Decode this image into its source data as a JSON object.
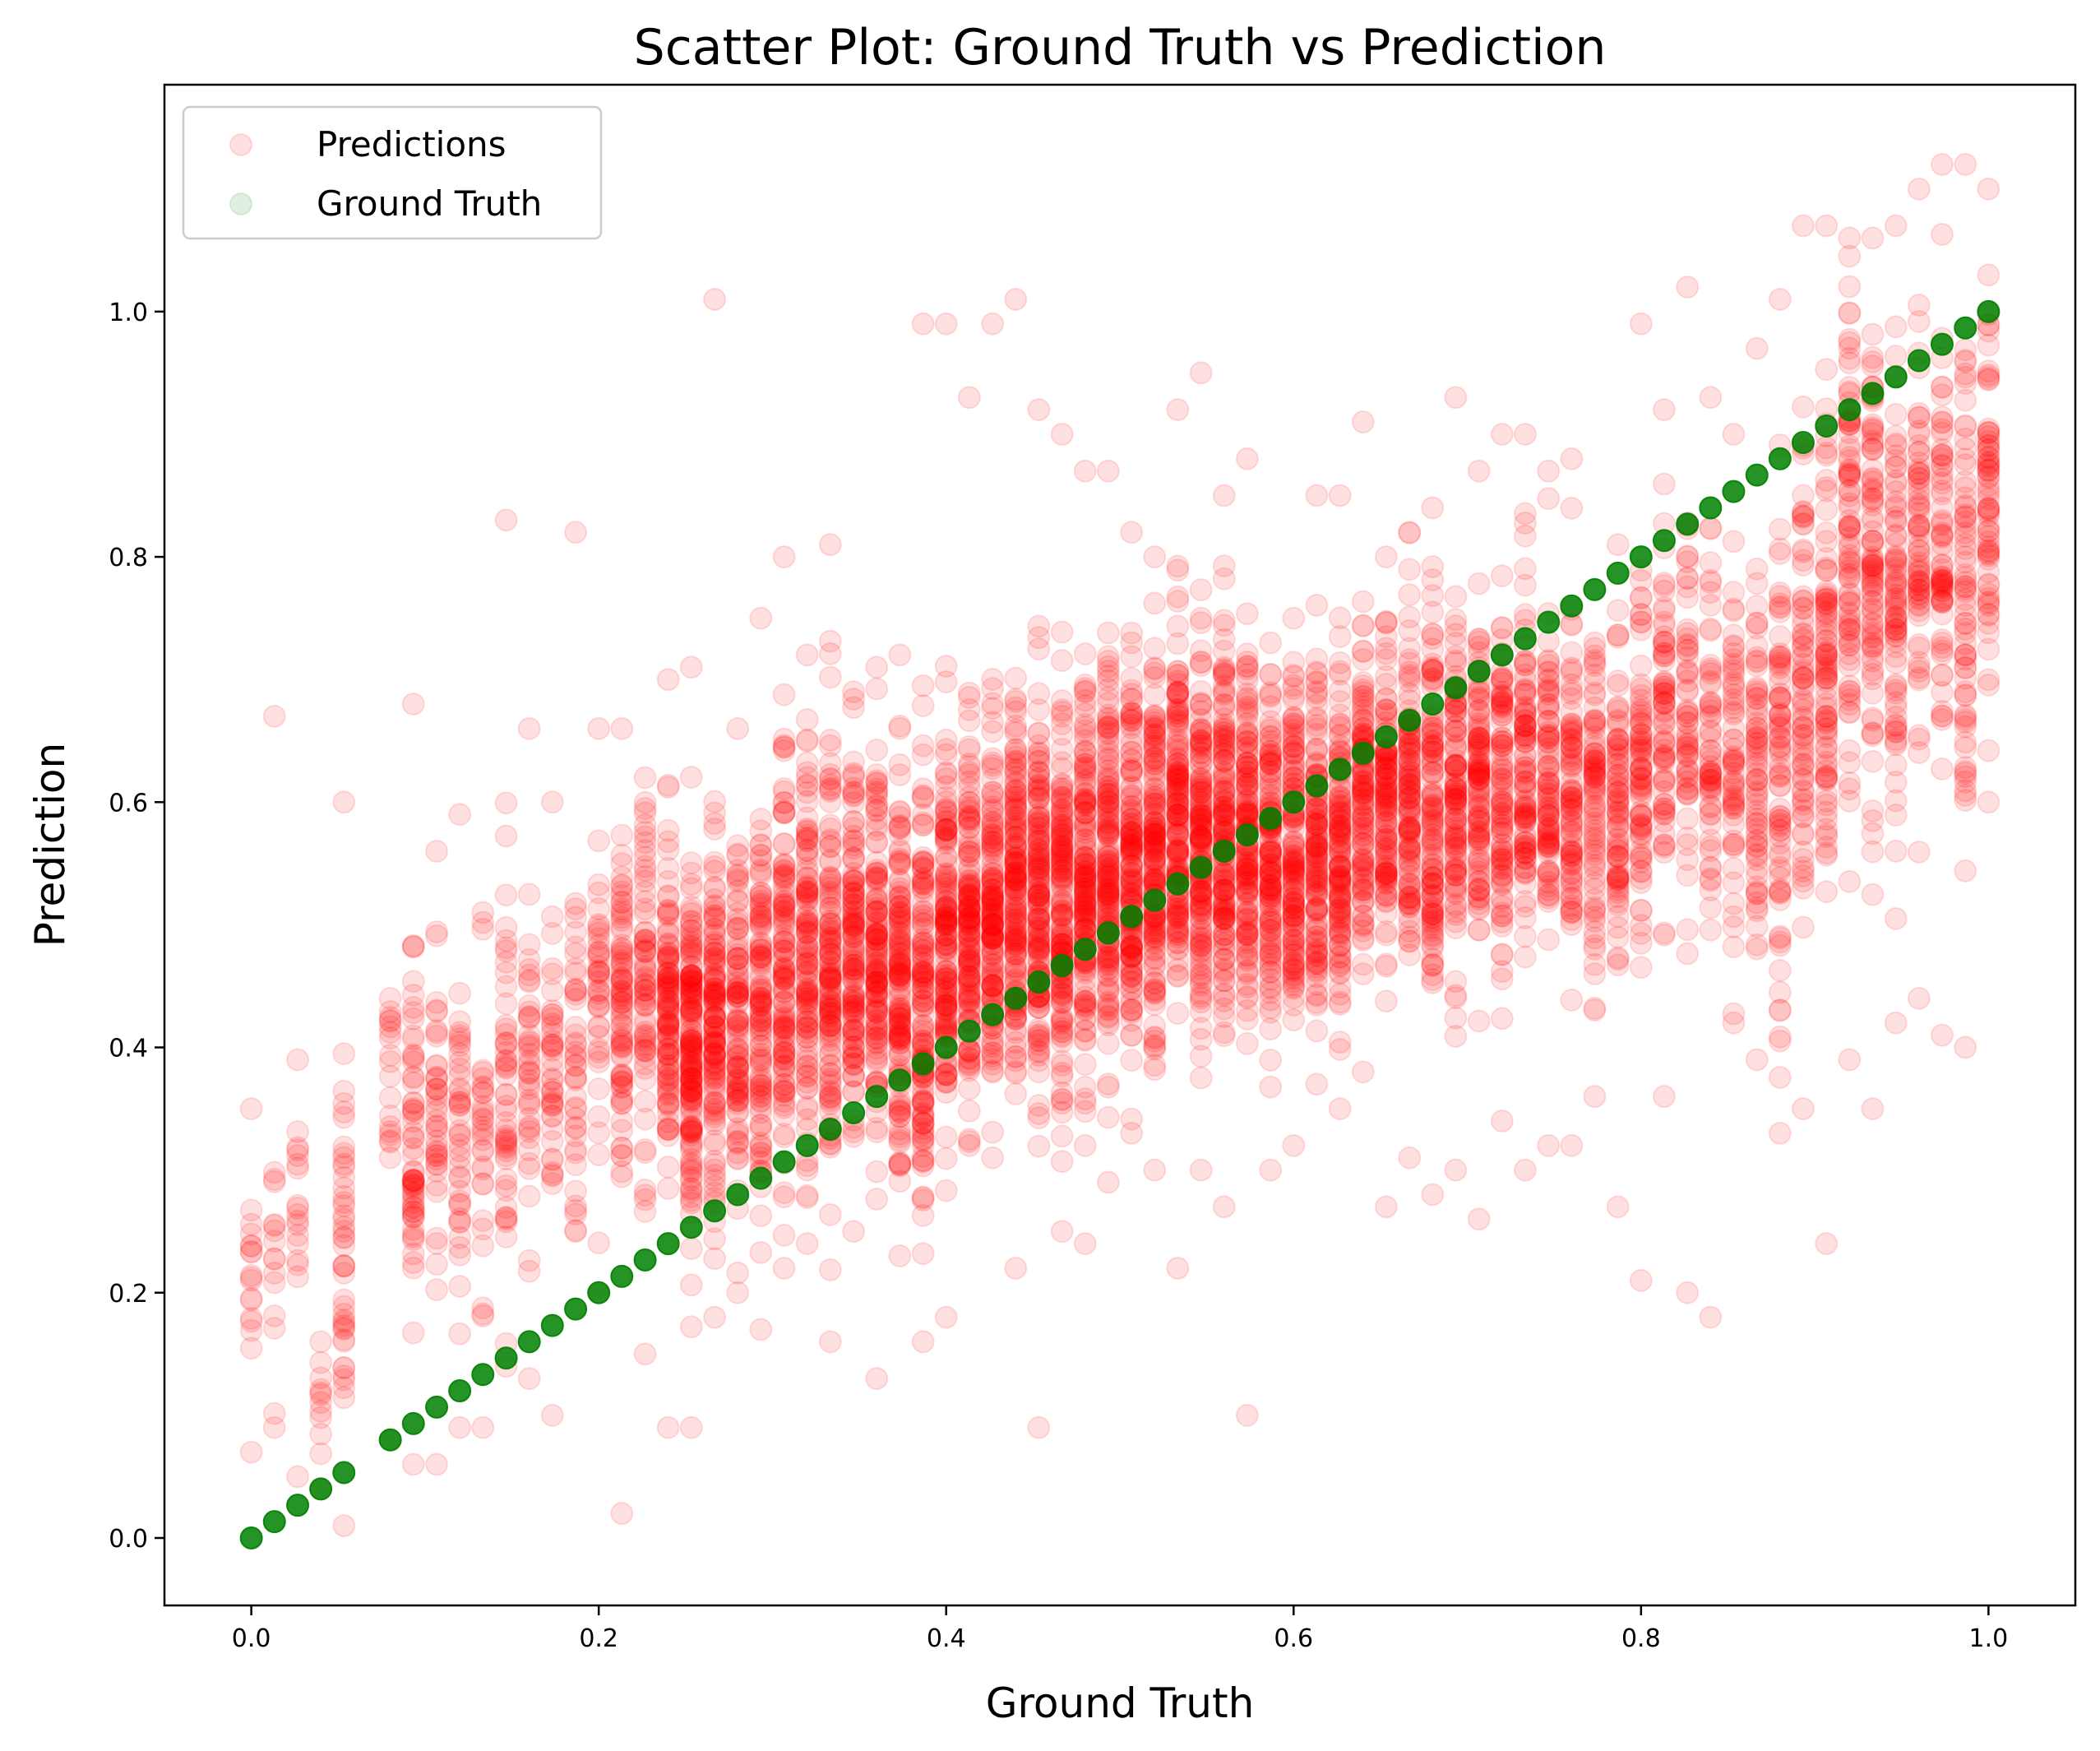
{
  "chart_data": {
    "type": "scatter",
    "title": "Scatter Plot: Ground Truth vs Prediction",
    "xlabel": "Ground Truth",
    "ylabel": "Prediction",
    "xlim": [
      -0.05,
      1.05
    ],
    "ylim": [
      -0.055,
      1.185
    ],
    "xticks": [
      0.0,
      0.2,
      0.4,
      0.6,
      0.8,
      1.0
    ],
    "xtick_labels": [
      "0.0",
      "0.2",
      "0.4",
      "0.6",
      "0.8",
      "1.0"
    ],
    "yticks": [
      0.0,
      0.2,
      0.4,
      0.6,
      0.8,
      1.0
    ],
    "ytick_labels": [
      "0.0",
      "0.2",
      "0.4",
      "0.6",
      "0.8",
      "1.0"
    ],
    "grid": false,
    "legend_position": "top-left",
    "series": [
      {
        "name": "Predictions",
        "color": "#ff0000",
        "alpha": 0.12,
        "marker": "circle",
        "columns_x": [
          0.0,
          0.0133,
          0.0267,
          0.04,
          0.0533,
          0.08,
          0.0933,
          0.1067,
          0.12,
          0.1333,
          0.1467,
          0.16,
          0.1733,
          0.1867,
          0.2,
          0.2133,
          0.2267,
          0.24,
          0.2533,
          0.2667,
          0.28,
          0.2933,
          0.3067,
          0.32,
          0.3333,
          0.3467,
          0.36,
          0.3733,
          0.3867,
          0.4,
          0.4133,
          0.4267,
          0.44,
          0.4533,
          0.4667,
          0.48,
          0.4933,
          0.5067,
          0.52,
          0.5333,
          0.5467,
          0.56,
          0.5733,
          0.5867,
          0.6,
          0.6133,
          0.6267,
          0.64,
          0.6533,
          0.6667,
          0.68,
          0.6933,
          0.7067,
          0.72,
          0.7333,
          0.7467,
          0.76,
          0.7733,
          0.7867,
          0.8,
          0.8133,
          0.8267,
          0.84,
          0.8533,
          0.8667,
          0.88,
          0.8933,
          0.9067,
          0.92,
          0.9333,
          0.9467,
          0.96,
          0.9733,
          0.9867,
          1.0
        ],
        "columns_center": [
          0.2,
          0.24,
          0.27,
          0.11,
          0.22,
          0.36,
          0.34,
          0.35,
          0.33,
          0.32,
          0.38,
          0.38,
          0.38,
          0.41,
          0.44,
          0.44,
          0.45,
          0.43,
          0.4,
          0.42,
          0.43,
          0.43,
          0.46,
          0.47,
          0.47,
          0.48,
          0.47,
          0.46,
          0.46,
          0.48,
          0.5,
          0.52,
          0.53,
          0.52,
          0.52,
          0.54,
          0.54,
          0.55,
          0.56,
          0.58,
          0.57,
          0.58,
          0.58,
          0.57,
          0.56,
          0.56,
          0.56,
          0.6,
          0.6,
          0.6,
          0.6,
          0.59,
          0.62,
          0.62,
          0.63,
          0.62,
          0.6,
          0.6,
          0.6,
          0.62,
          0.68,
          0.68,
          0.65,
          0.62,
          0.62,
          0.64,
          0.69,
          0.72,
          0.82,
          0.8,
          0.76,
          0.82,
          0.78,
          0.76,
          0.86
        ],
        "columns_spread": [
          0.07,
          0.1,
          0.08,
          0.04,
          0.12,
          0.1,
          0.12,
          0.13,
          0.12,
          0.12,
          0.14,
          0.12,
          0.12,
          0.12,
          0.12,
          0.13,
          0.13,
          0.11,
          0.13,
          0.12,
          0.12,
          0.13,
          0.14,
          0.14,
          0.15,
          0.13,
          0.12,
          0.12,
          0.14,
          0.13,
          0.13,
          0.13,
          0.13,
          0.13,
          0.13,
          0.13,
          0.13,
          0.13,
          0.13,
          0.13,
          0.12,
          0.13,
          0.13,
          0.12,
          0.12,
          0.11,
          0.12,
          0.11,
          0.11,
          0.12,
          0.12,
          0.12,
          0.12,
          0.12,
          0.12,
          0.11,
          0.11,
          0.11,
          0.11,
          0.12,
          0.12,
          0.12,
          0.12,
          0.12,
          0.12,
          0.16,
          0.17,
          0.17,
          0.17,
          0.16,
          0.16,
          0.15,
          0.16,
          0.16,
          0.16
        ],
        "columns_min": [
          0.07,
          0.09,
          0.05,
          0.04,
          0.01,
          0.08,
          0.06,
          0.06,
          0.09,
          0.09,
          0.14,
          0.13,
          0.1,
          0.25,
          0.2,
          0.02,
          0.15,
          0.09,
          0.09,
          0.18,
          0.2,
          0.17,
          0.22,
          0.24,
          0.16,
          0.25,
          0.13,
          0.23,
          0.16,
          0.18,
          0.32,
          0.31,
          0.22,
          0.09,
          0.25,
          0.24,
          0.29,
          0.33,
          0.3,
          0.22,
          0.3,
          0.27,
          0.1,
          0.3,
          0.32,
          0.37,
          0.35,
          0.38,
          0.27,
          0.31,
          0.28,
          0.3,
          0.26,
          0.34,
          0.3,
          0.32,
          0.32,
          0.36,
          0.27,
          0.21,
          0.36,
          0.2,
          0.18,
          0.42,
          0.39,
          0.33,
          0.35,
          0.24,
          0.39,
          0.35,
          0.42,
          0.44,
          0.41,
          0.4,
          0.6
        ],
        "columns_max": [
          0.35,
          0.67,
          0.39,
          0.16,
          0.6,
          0.44,
          0.68,
          0.56,
          0.59,
          0.51,
          0.83,
          0.66,
          0.6,
          0.82,
          0.66,
          0.66,
          0.62,
          0.7,
          0.71,
          1.01,
          0.66,
          0.75,
          0.8,
          0.72,
          0.81,
          0.69,
          0.71,
          0.72,
          0.99,
          0.99,
          0.93,
          0.99,
          1.01,
          0.92,
          0.9,
          0.87,
          0.87,
          0.82,
          0.8,
          0.92,
          0.95,
          0.85,
          0.88,
          0.73,
          0.75,
          0.85,
          0.85,
          0.91,
          0.8,
          0.82,
          0.84,
          0.93,
          0.87,
          0.9,
          0.9,
          0.87,
          0.88,
          0.73,
          0.81,
          0.99,
          0.92,
          1.02,
          0.93,
          0.9,
          0.97,
          1.01,
          1.07,
          1.07,
          1.06,
          1.06,
          1.07,
          1.1,
          1.12,
          1.12,
          1.1
        ],
        "columns_count": [
          16,
          14,
          16,
          10,
          42,
          18,
          60,
          40,
          40,
          30,
          50,
          40,
          40,
          40,
          40,
          80,
          70,
          110,
          160,
          130,
          100,
          110,
          120,
          120,
          130,
          130,
          130,
          140,
          140,
          150,
          150,
          150,
          160,
          160,
          160,
          160,
          160,
          160,
          160,
          160,
          160,
          160,
          150,
          140,
          140,
          130,
          130,
          120,
          120,
          120,
          120,
          110,
          110,
          100,
          100,
          90,
          90,
          80,
          80,
          80,
          70,
          60,
          60,
          60,
          70,
          80,
          80,
          90,
          90,
          90,
          80,
          70,
          70,
          70,
          70
        ]
      },
      {
        "name": "Ground Truth",
        "color": "#008000",
        "alpha": 0.85,
        "marker": "circle",
        "x": [
          0.0,
          0.0133,
          0.0267,
          0.04,
          0.0533,
          0.08,
          0.0933,
          0.1067,
          0.12,
          0.1333,
          0.1467,
          0.16,
          0.1733,
          0.1867,
          0.2,
          0.2133,
          0.2267,
          0.24,
          0.2533,
          0.2667,
          0.28,
          0.2933,
          0.3067,
          0.32,
          0.3333,
          0.3467,
          0.36,
          0.3733,
          0.3867,
          0.4,
          0.4133,
          0.4267,
          0.44,
          0.4533,
          0.4667,
          0.48,
          0.4933,
          0.5067,
          0.52,
          0.5333,
          0.5467,
          0.56,
          0.5733,
          0.5867,
          0.6,
          0.6133,
          0.6267,
          0.64,
          0.6533,
          0.6667,
          0.68,
          0.6933,
          0.7067,
          0.72,
          0.7333,
          0.7467,
          0.76,
          0.7733,
          0.7867,
          0.8,
          0.8133,
          0.8267,
          0.84,
          0.8533,
          0.8667,
          0.88,
          0.8933,
          0.9067,
          0.92,
          0.9333,
          0.9467,
          0.96,
          0.9733,
          0.9867,
          1.0
        ],
        "y": [
          0.0,
          0.0133,
          0.0267,
          0.04,
          0.0533,
          0.08,
          0.0933,
          0.1067,
          0.12,
          0.1333,
          0.1467,
          0.16,
          0.1733,
          0.1867,
          0.2,
          0.2133,
          0.2267,
          0.24,
          0.2533,
          0.2667,
          0.28,
          0.2933,
          0.3067,
          0.32,
          0.3333,
          0.3467,
          0.36,
          0.3733,
          0.3867,
          0.4,
          0.4133,
          0.4267,
          0.44,
          0.4533,
          0.4667,
          0.48,
          0.4933,
          0.5067,
          0.52,
          0.5333,
          0.5467,
          0.56,
          0.5733,
          0.5867,
          0.6,
          0.6133,
          0.6267,
          0.64,
          0.6533,
          0.6667,
          0.68,
          0.6933,
          0.7067,
          0.72,
          0.7333,
          0.7467,
          0.76,
          0.7733,
          0.7867,
          0.8,
          0.8133,
          0.8267,
          0.84,
          0.8533,
          0.8667,
          0.88,
          0.8933,
          0.9067,
          0.92,
          0.9333,
          0.9467,
          0.96,
          0.9733,
          0.9867,
          1.0
        ]
      }
    ]
  }
}
